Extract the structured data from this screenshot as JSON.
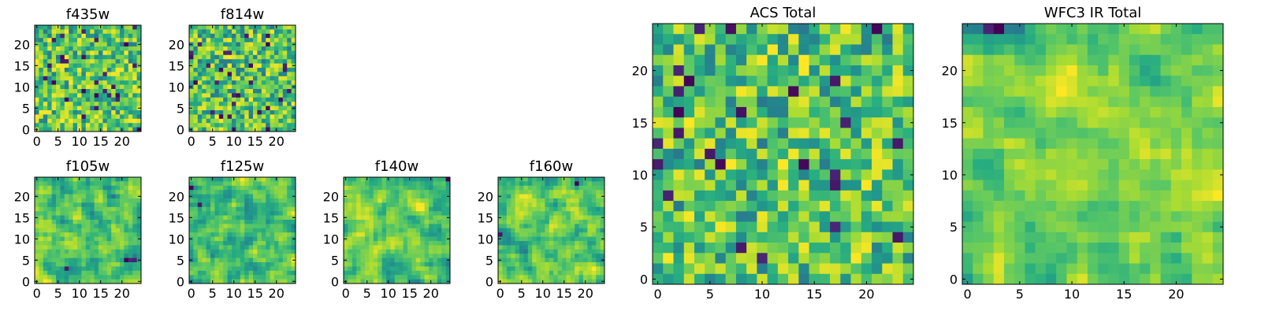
{
  "chart_data": [
    {
      "type": "heatmap",
      "title": "f435w",
      "x_ticks": [
        0,
        5,
        10,
        15,
        20
      ],
      "y_ticks": [
        0,
        5,
        10,
        15,
        20
      ],
      "xlim": [
        -0.5,
        24.5
      ],
      "ylim": [
        -0.5,
        24.5
      ],
      "grid_size": 25,
      "colormap": "viridis",
      "value_range": [
        0,
        1
      ],
      "seed": 11,
      "smooth": 0
    },
    {
      "type": "heatmap",
      "title": "f814w",
      "x_ticks": [
        0,
        5,
        10,
        15,
        20
      ],
      "y_ticks": [
        0,
        5,
        10,
        15,
        20
      ],
      "xlim": [
        -0.5,
        24.5
      ],
      "ylim": [
        -0.5,
        24.5
      ],
      "grid_size": 25,
      "colormap": "viridis",
      "value_range": [
        0,
        1
      ],
      "seed": 23,
      "smooth": 0
    },
    {
      "type": "heatmap",
      "title": "f105w",
      "x_ticks": [
        0,
        5,
        10,
        15,
        20
      ],
      "y_ticks": [
        0,
        5,
        10,
        15,
        20
      ],
      "xlim": [
        -0.5,
        24.5
      ],
      "ylim": [
        -0.5,
        24.5
      ],
      "grid_size": 25,
      "colormap": "viridis",
      "value_range": [
        0,
        1
      ],
      "seed": 37,
      "smooth": 1
    },
    {
      "type": "heatmap",
      "title": "f125w",
      "x_ticks": [
        0,
        5,
        10,
        15,
        20
      ],
      "y_ticks": [
        0,
        5,
        10,
        15,
        20
      ],
      "xlim": [
        -0.5,
        24.5
      ],
      "ylim": [
        -0.5,
        24.5
      ],
      "grid_size": 25,
      "colormap": "viridis",
      "value_range": [
        0,
        1
      ],
      "seed": 41,
      "smooth": 1
    },
    {
      "type": "heatmap",
      "title": "f140w",
      "x_ticks": [
        0,
        5,
        10,
        15,
        20
      ],
      "y_ticks": [
        0,
        5,
        10,
        15,
        20
      ],
      "xlim": [
        -0.5,
        24.5
      ],
      "ylim": [
        -0.5,
        24.5
      ],
      "grid_size": 25,
      "colormap": "viridis",
      "value_range": [
        0,
        1
      ],
      "seed": 53,
      "smooth": 1
    },
    {
      "type": "heatmap",
      "title": "f160w",
      "x_ticks": [
        0,
        5,
        10,
        15,
        20
      ],
      "y_ticks": [
        0,
        5,
        10,
        15,
        20
      ],
      "xlim": [
        -0.5,
        24.5
      ],
      "ylim": [
        -0.5,
        24.5
      ],
      "grid_size": 25,
      "colormap": "viridis",
      "value_range": [
        0,
        1
      ],
      "seed": 67,
      "smooth": 1
    },
    {
      "type": "heatmap",
      "title": "ACS Total",
      "x_ticks": [
        0,
        5,
        10,
        15,
        20
      ],
      "y_ticks": [
        0,
        5,
        10,
        15,
        20
      ],
      "xlim": [
        -0.5,
        24.5
      ],
      "ylim": [
        -0.5,
        24.5
      ],
      "grid_size": 25,
      "colormap": "viridis",
      "value_range": [
        0,
        1
      ],
      "seed": 79,
      "smooth": 0
    },
    {
      "type": "heatmap",
      "title": "WFC3 IR Total",
      "x_ticks": [
        0,
        5,
        10,
        15,
        20
      ],
      "y_ticks": [
        0,
        5,
        10,
        15,
        20
      ],
      "xlim": [
        -0.5,
        24.5
      ],
      "ylim": [
        -0.5,
        24.5
      ],
      "grid_size": 25,
      "colormap": "viridis",
      "value_range": [
        0,
        1
      ],
      "seed": 97,
      "smooth": 1
    }
  ]
}
